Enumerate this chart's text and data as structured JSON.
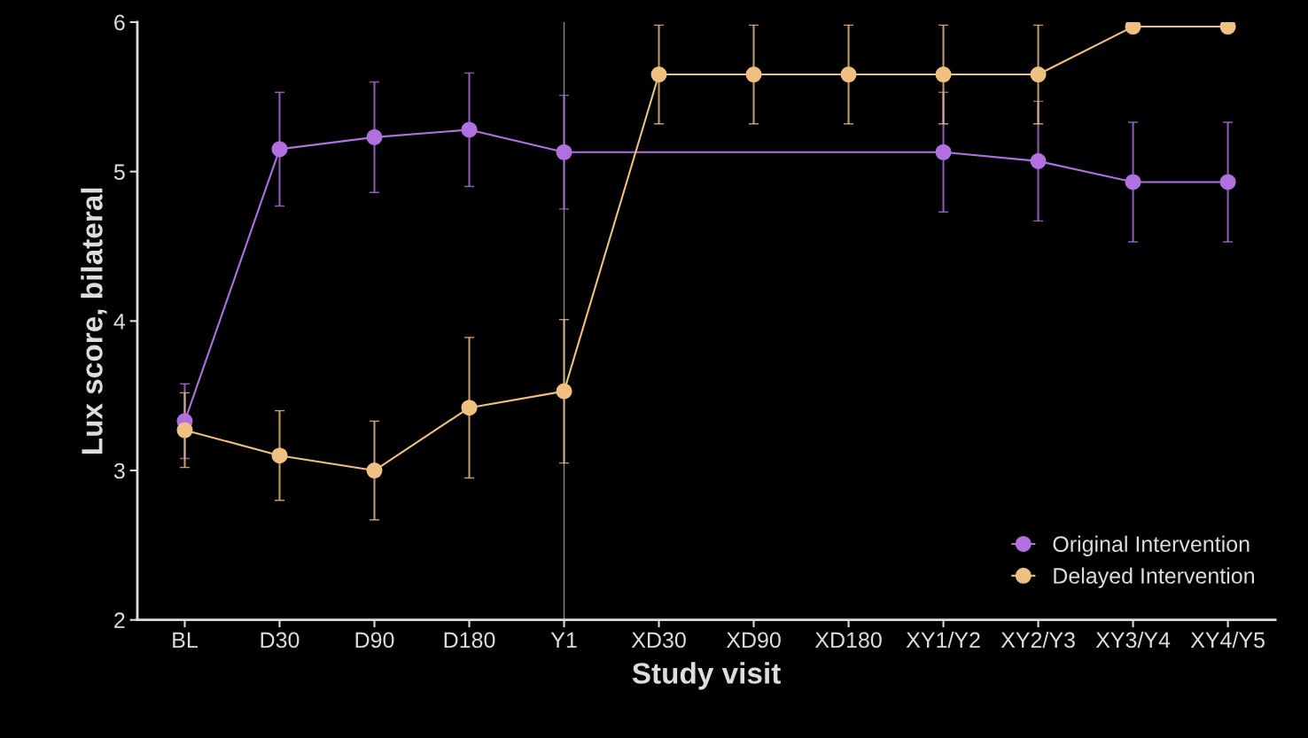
{
  "chart_data": {
    "type": "line",
    "xlabel": "Study visit",
    "ylabel": "Lux score, bilateral",
    "ylim": [
      2,
      6
    ],
    "yticks": [
      2,
      3,
      4,
      5,
      6
    ],
    "categories": [
      "BL",
      "D30",
      "D90",
      "D180",
      "Y1",
      "XD30",
      "XD90",
      "XD180",
      "XY1/Y2",
      "XY2/Y3",
      "XY3/Y4",
      "XY4/Y5"
    ],
    "series": [
      {
        "name": "Original Intervention",
        "color": "#b070e0",
        "x": [
          "BL",
          "D30",
          "D90",
          "D180",
          "Y1",
          "XY1/Y2",
          "XY2/Y3",
          "XY3/Y4",
          "XY4/Y5"
        ],
        "values": [
          3.33,
          5.15,
          5.23,
          5.28,
          5.13,
          5.13,
          5.07,
          4.93,
          4.93
        ],
        "errors": [
          0.25,
          0.38,
          0.37,
          0.38,
          0.38,
          0.4,
          0.4,
          0.4,
          0.4
        ]
      },
      {
        "name": "Delayed Intervention",
        "color": "#f0c080",
        "values": [
          3.27,
          3.1,
          3.0,
          3.42,
          3.53,
          5.65,
          5.65,
          5.65,
          5.65,
          5.65,
          5.97,
          5.97
        ],
        "errors": [
          0.25,
          0.3,
          0.33,
          0.47,
          0.48,
          0.33,
          0.33,
          0.33,
          0.33,
          0.33,
          null,
          null
        ]
      }
    ],
    "ref_lines": [
      {
        "axis": "x",
        "value": "Y1",
        "color": "#888888"
      }
    ],
    "marker": "circle",
    "grid": false,
    "legend": "bottom right"
  }
}
